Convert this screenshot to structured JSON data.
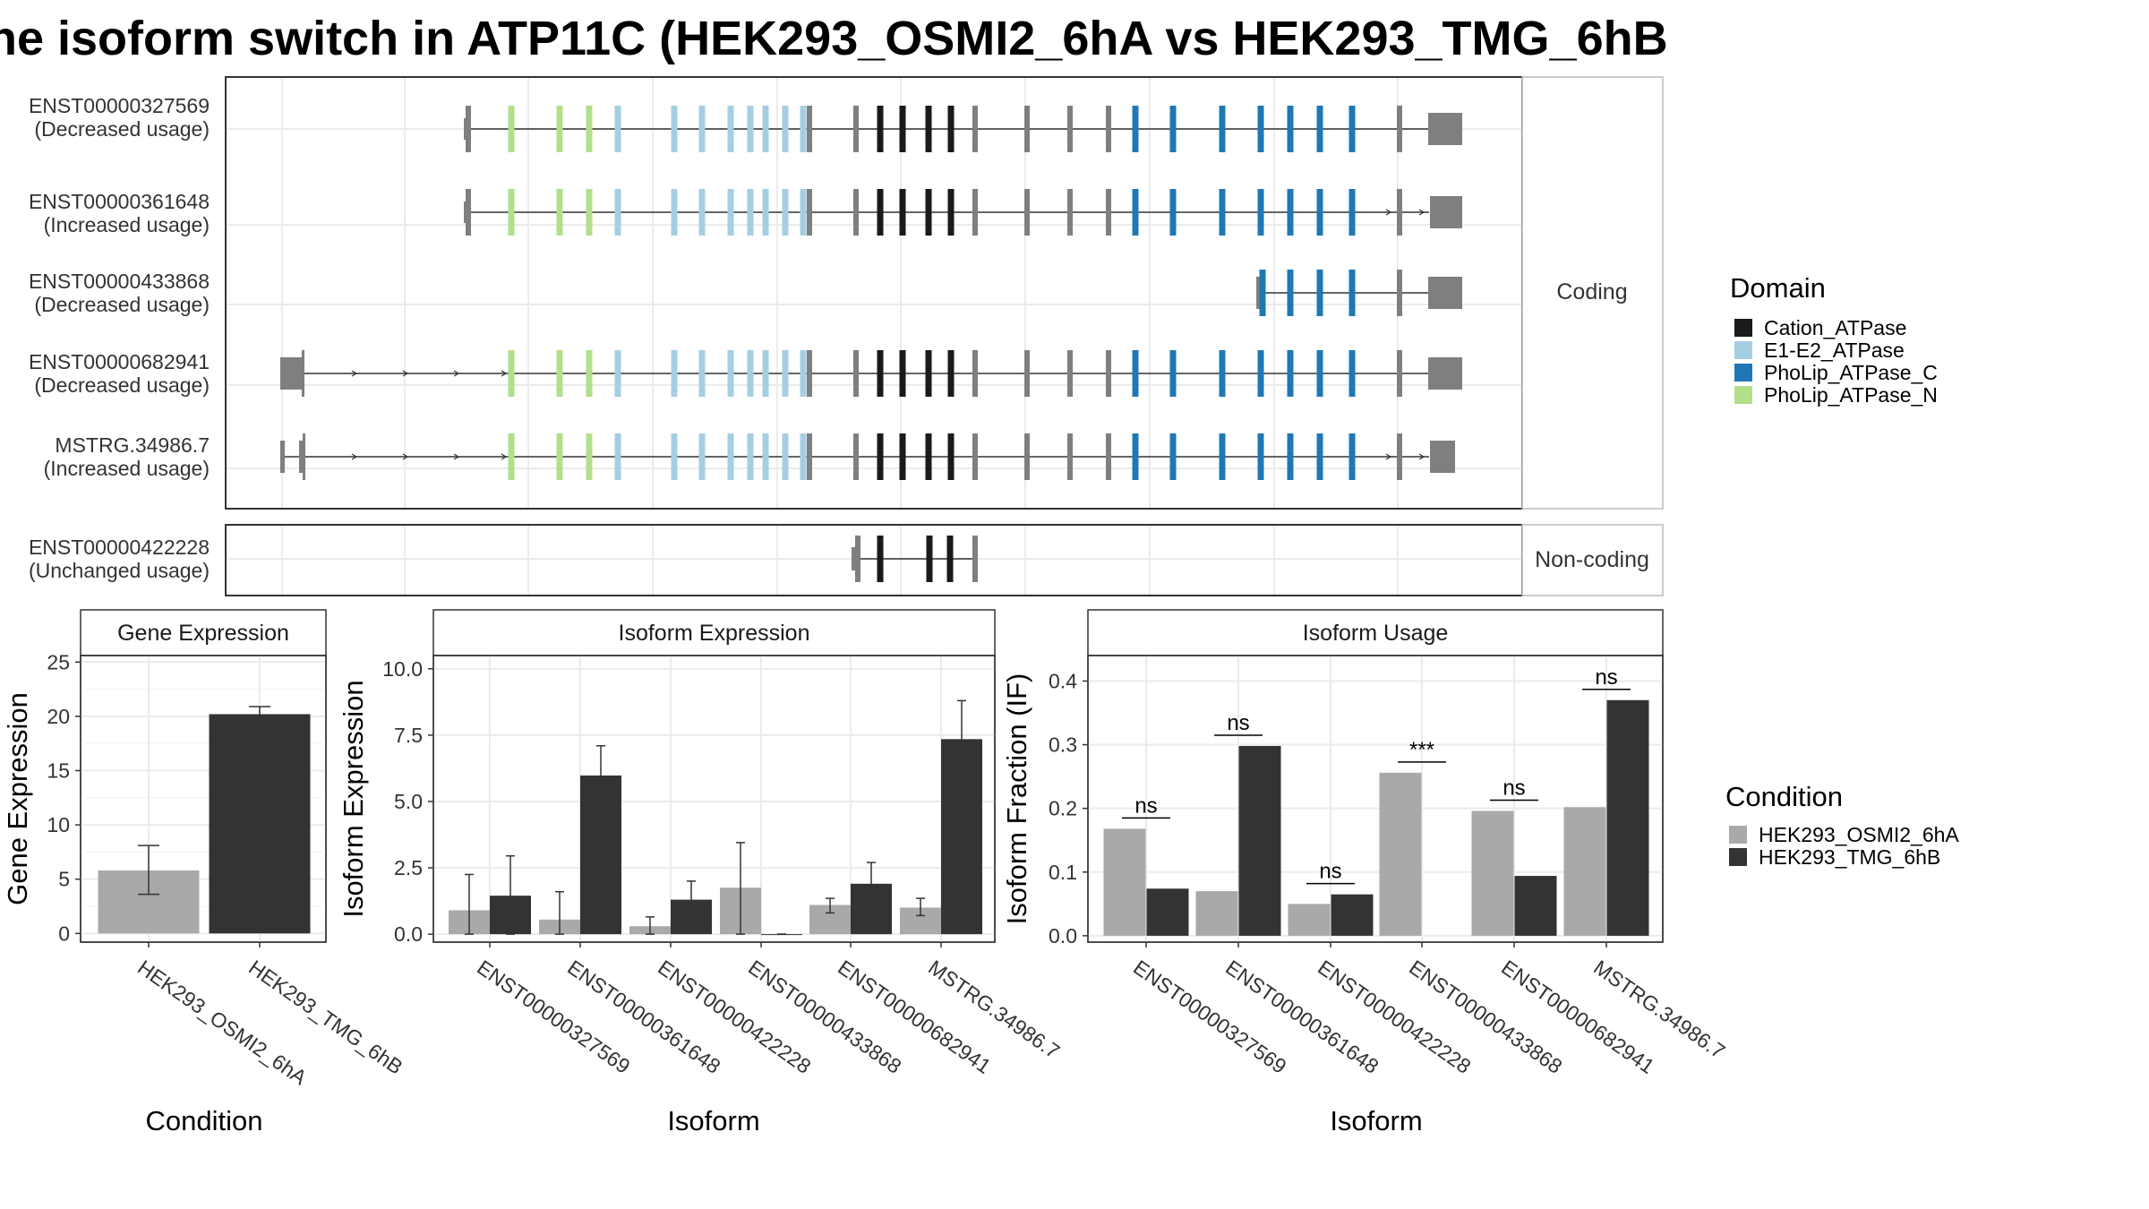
{
  "title": "he isoform switch in ATP11C (HEK293_OSMI2_6hA vs HEK293_TMG_6hB",
  "colors": {
    "cation": "#1a1a1a",
    "e1e2": "#a6cee3",
    "pholipC": "#1f78b4",
    "pholipN": "#b2df8a",
    "exon": "#7f7f7f",
    "cond1": "#a9a9a9",
    "cond2": "#333333"
  },
  "structure": {
    "facet_coding": "Coding",
    "facet_noncoding": "Non-coding",
    "isoforms": [
      {
        "id": "ENST00000327569",
        "usage": "(Decreased usage)",
        "facet": "coding",
        "arrows": false
      },
      {
        "id": "ENST00000361648",
        "usage": "(Increased usage)",
        "facet": "coding",
        "arrows": true
      },
      {
        "id": "ENST00000433868",
        "usage": "(Decreased usage)",
        "facet": "coding",
        "arrows": false
      },
      {
        "id": "ENST00000682941",
        "usage": "(Decreased usage)",
        "facet": "coding",
        "arrows": true
      },
      {
        "id": "MSTRG.34986.7",
        "usage": "(Increased usage)",
        "facet": "coding",
        "arrows": true
      },
      {
        "id": "ENST00000422228",
        "usage": "(Unchanged usage)",
        "facet": "noncoding",
        "arrows": false
      }
    ],
    "legend_title": "Domain",
    "legend": [
      {
        "label": "Cation_ATPase",
        "key": "cation"
      },
      {
        "label": "E1-E2_ATPase",
        "key": "e1e2"
      },
      {
        "label": "PhoLip_ATPase_C",
        "key": "pholipC"
      },
      {
        "label": "PhoLip_ATPase_N",
        "key": "pholipN"
      }
    ]
  },
  "chart_data": [
    {
      "type": "bar",
      "title": "Gene Expression",
      "xlabel": "Condition",
      "ylabel": "Gene Expression",
      "categories": [
        "HEK293_OSMI2_6hA",
        "HEK293_TMG_6hB"
      ],
      "values": [
        5.8,
        20.2
      ],
      "errors": [
        [
          3.6,
          8.1
        ],
        [
          19.6,
          20.9
        ]
      ],
      "yticks": [
        0,
        5,
        10,
        15,
        20,
        25
      ],
      "ylim": [
        -0.8,
        25.6
      ]
    },
    {
      "type": "bar",
      "title": "Isoform Expression",
      "xlabel": "Isoform",
      "ylabel": "Isoform Expression",
      "categories": [
        "ENST00000327569",
        "ENST00000361648",
        "ENST00000422228",
        "ENST00000433868",
        "ENST00000682941",
        "MSTRG.34986.7"
      ],
      "series": [
        {
          "name": "HEK293_OSMI2_6hA",
          "values": [
            0.9,
            0.55,
            0.3,
            1.75,
            1.1,
            1.0
          ],
          "errors": [
            [
              0,
              2.25
            ],
            [
              0,
              1.6
            ],
            [
              0,
              0.65
            ],
            [
              0,
              3.45
            ],
            [
              0.8,
              1.35
            ],
            [
              0.7,
              1.35
            ]
          ]
        },
        {
          "name": "HEK293_TMG_6hB",
          "values": [
            1.45,
            5.98,
            1.3,
            0.0,
            1.9,
            7.35
          ],
          "errors": [
            [
              0,
              2.95
            ],
            [
              4.9,
              7.1
            ],
            [
              0.6,
              2.0
            ],
            [
              0,
              0
            ],
            [
              1.1,
              2.7
            ],
            [
              5.9,
              8.8
            ]
          ]
        }
      ],
      "yticks": [
        "0.0",
        "2.5",
        "5.0",
        "7.5",
        "10.0"
      ],
      "ylim": [
        -0.3,
        10.5
      ]
    },
    {
      "type": "bar",
      "title": "Isoform Usage",
      "xlabel": "Isoform",
      "ylabel": "Isoform Fraction (IF)",
      "categories": [
        "ENST00000327569",
        "ENST00000361648",
        "ENST00000422228",
        "ENST00000433868",
        "ENST00000682941",
        "MSTRG.34986.7"
      ],
      "series": [
        {
          "name": "HEK293_OSMI2_6hA",
          "values": [
            0.168,
            0.07,
            0.05,
            0.256,
            0.196,
            0.202
          ]
        },
        {
          "name": "HEK293_TMG_6hB",
          "values": [
            0.074,
            0.298,
            0.065,
            0.0,
            0.094,
            0.37
          ]
        }
      ],
      "significance": [
        "ns",
        "ns",
        "ns",
        "***",
        "ns",
        "ns"
      ],
      "yticks": [
        "0.0",
        "0.1",
        "0.2",
        "0.3",
        "0.4"
      ],
      "ylim": [
        -0.01,
        0.44
      ]
    }
  ],
  "condition_legend": {
    "title": "Condition",
    "items": [
      "HEK293_OSMI2_6hA",
      "HEK293_TMG_6hB"
    ]
  }
}
